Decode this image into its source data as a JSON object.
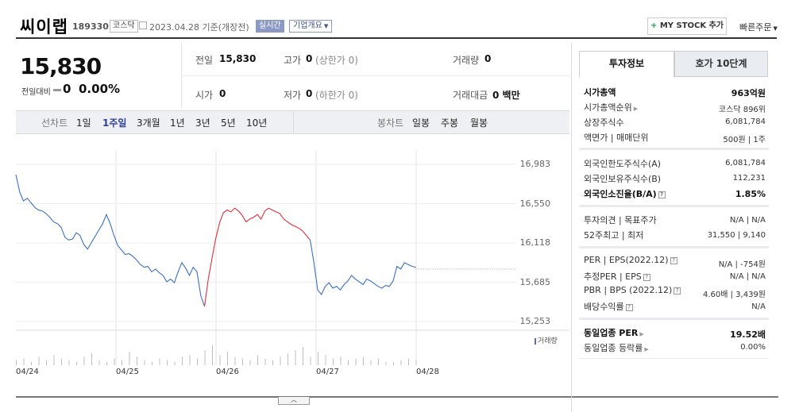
{
  "header": {
    "name": "씨이랩",
    "code": "189330",
    "market": "코스닥",
    "date": "2023.04.28",
    "date_suffix": "기준(개장전)",
    "live_label": "실시간",
    "summary_label": "기업개요",
    "mystock_label": "MY STOCK 추가",
    "quick_order_label": "빠른주문"
  },
  "quote": {
    "price": "15,830",
    "change_label": "전일대비",
    "change_value": "0",
    "change_percent": "0.00%",
    "prev_label": "전일",
    "prev_value": "15,830",
    "high_label": "고가",
    "high_value": "0",
    "high_sub": "(상한가 0)",
    "volume_label": "거래량",
    "volume_value": "0",
    "open_label": "시가",
    "open_value": "0",
    "low_label": "저가",
    "low_value": "0",
    "low_sub": "(하한가 0)",
    "amount_label": "거래대금",
    "amount_value": "0 백만"
  },
  "chart_tabs": {
    "line_label": "선차트",
    "line_items": [
      "1일",
      "1주일",
      "3개월",
      "1년",
      "3년",
      "5년",
      "10년"
    ],
    "selected": "1주일",
    "candle_label": "봉차트",
    "candle_items": [
      "일봉",
      "주봉",
      "월봉"
    ],
    "volume_legend": "거래량"
  },
  "chart_data": {
    "type": "line",
    "title": "",
    "yticks": [
      "16,983",
      "16,550",
      "16,118",
      "15,685",
      "15,253"
    ],
    "ylim": [
      15253,
      16983
    ],
    "xticks": [
      "04/24",
      "04/25",
      "04/26",
      "04/27",
      "04/28"
    ],
    "reference_price": 15830,
    "series": [
      {
        "color": "#3a6fc4",
        "x": [
          0,
          0.5,
          1,
          1.5,
          2,
          2.5,
          3,
          3.5,
          4,
          4.5,
          5,
          5.5,
          6,
          6.5,
          7,
          7.5,
          8,
          8.5,
          9,
          9.5,
          10,
          10.5,
          11,
          11.5,
          12,
          12.5,
          13,
          13.5,
          14,
          14.5,
          15,
          15.5,
          16,
          16.5,
          17,
          17.5,
          18,
          18.5,
          19,
          19.5,
          20,
          20.5,
          21,
          21.5,
          22,
          22.5,
          23,
          23.5,
          24,
          24.5,
          25
        ],
        "values": [
          16870,
          16680,
          16580,
          16610,
          16560,
          16510,
          16480,
          16470,
          16440,
          16400,
          16350,
          16330,
          16290,
          16180,
          16150,
          16160,
          16230,
          16200,
          16100,
          16050,
          16120,
          16190,
          16260,
          16330,
          16430,
          16330,
          16200,
          16090,
          16040,
          15990,
          16000,
          15970,
          15930,
          15880,
          15850,
          15860,
          15800,
          15830,
          15790,
          15760,
          15690,
          15720,
          15680,
          15800,
          15900,
          15840,
          15760,
          15850,
          15800,
          15540,
          15420
        ]
      },
      {
        "color": "#e0303a",
        "x": [
          25,
          25.5,
          26,
          26.5,
          27,
          27.5,
          28,
          28.5,
          29,
          29.5,
          30,
          30.5,
          31,
          31.5,
          32,
          32.5,
          33,
          33.5,
          34,
          34.5,
          35,
          35.5,
          36,
          36.5,
          37,
          37.5,
          38,
          38.5,
          39
        ],
        "values": [
          15420,
          15720,
          15950,
          16170,
          16340,
          16450,
          16480,
          16460,
          16500,
          16470,
          16420,
          16350,
          16380,
          16400,
          16430,
          16380,
          16470,
          16500,
          16480,
          16460,
          16440,
          16380,
          16350,
          16320,
          16300,
          16280,
          16250,
          16200,
          16150
        ]
      },
      {
        "color": "#3a6fc4",
        "x": [
          39,
          39.5,
          40,
          40.5,
          41,
          41.5,
          42,
          42.5,
          43,
          43.5,
          44,
          44.5,
          45,
          45.5,
          46,
          46.5,
          47,
          47.5,
          48,
          48.5,
          49,
          49.5,
          50,
          50.5,
          51,
          51.5,
          52,
          52.5,
          53
        ],
        "values": [
          16150,
          15900,
          15600,
          15550,
          15640,
          15680,
          15620,
          15640,
          15600,
          15660,
          15700,
          15760,
          15720,
          15690,
          15660,
          15720,
          15700,
          15670,
          15640,
          15620,
          15650,
          15640,
          15700,
          15860,
          15830,
          15900,
          15880,
          15860,
          15850
        ]
      }
    ],
    "volume": [
      3,
      4,
      2,
      5,
      3,
      6,
      4,
      3,
      2,
      5,
      7,
      3,
      2,
      4,
      3,
      8,
      5,
      3,
      2,
      4,
      3,
      2,
      5,
      6,
      4,
      9,
      12,
      6,
      8,
      5,
      4,
      3,
      6,
      4,
      3,
      5,
      7,
      9,
      11,
      5,
      8,
      6,
      4,
      5,
      3,
      4,
      5,
      3,
      4,
      2,
      2,
      3,
      4,
      3
    ]
  },
  "info_tabs": {
    "active": "투자정보",
    "other": "호가 10단계"
  },
  "info": {
    "market_cap_label": "시가총액",
    "market_cap_value": "963억원",
    "market_cap_rank_label": "시가총액순위",
    "market_cap_rank_value": "코스닥 896위",
    "listed_shares_label": "상장주식수",
    "listed_shares_value": "6,081,784",
    "par_label": "액면가 | 매매단위",
    "par_value": "500원 | 1주",
    "foreign_limit_label": "외국인한도주식수(A)",
    "foreign_limit_value": "6,081,784",
    "foreign_hold_label": "외국인보유주식수(B)",
    "foreign_hold_value": "112,231",
    "foreign_rate_label": "외국인소진율(B/A)",
    "foreign_rate_value": "1.85%",
    "opinion_label": "투자의견 | 목표주가",
    "opinion_value": "N/A | N/A",
    "week52_label": "52주최고 | 최저",
    "week52_value": "31,550 | 9,140",
    "per_label": "PER | EPS(2022.12)",
    "per_value": "N/A | -754원",
    "est_per_label": "추정PER | EPS",
    "est_per_value": "N/A | N/A",
    "pbr_label": "PBR | BPS (2022.12)",
    "pbr_value": "4.60배 | 3,439원",
    "dividend_label": "배당수익률",
    "dividend_value": "N/A",
    "industry_per_label": "동일업종 PER",
    "industry_per_value": "19.52배",
    "industry_rate_label": "동일업종 등락률",
    "industry_rate_value": "0.00%"
  }
}
